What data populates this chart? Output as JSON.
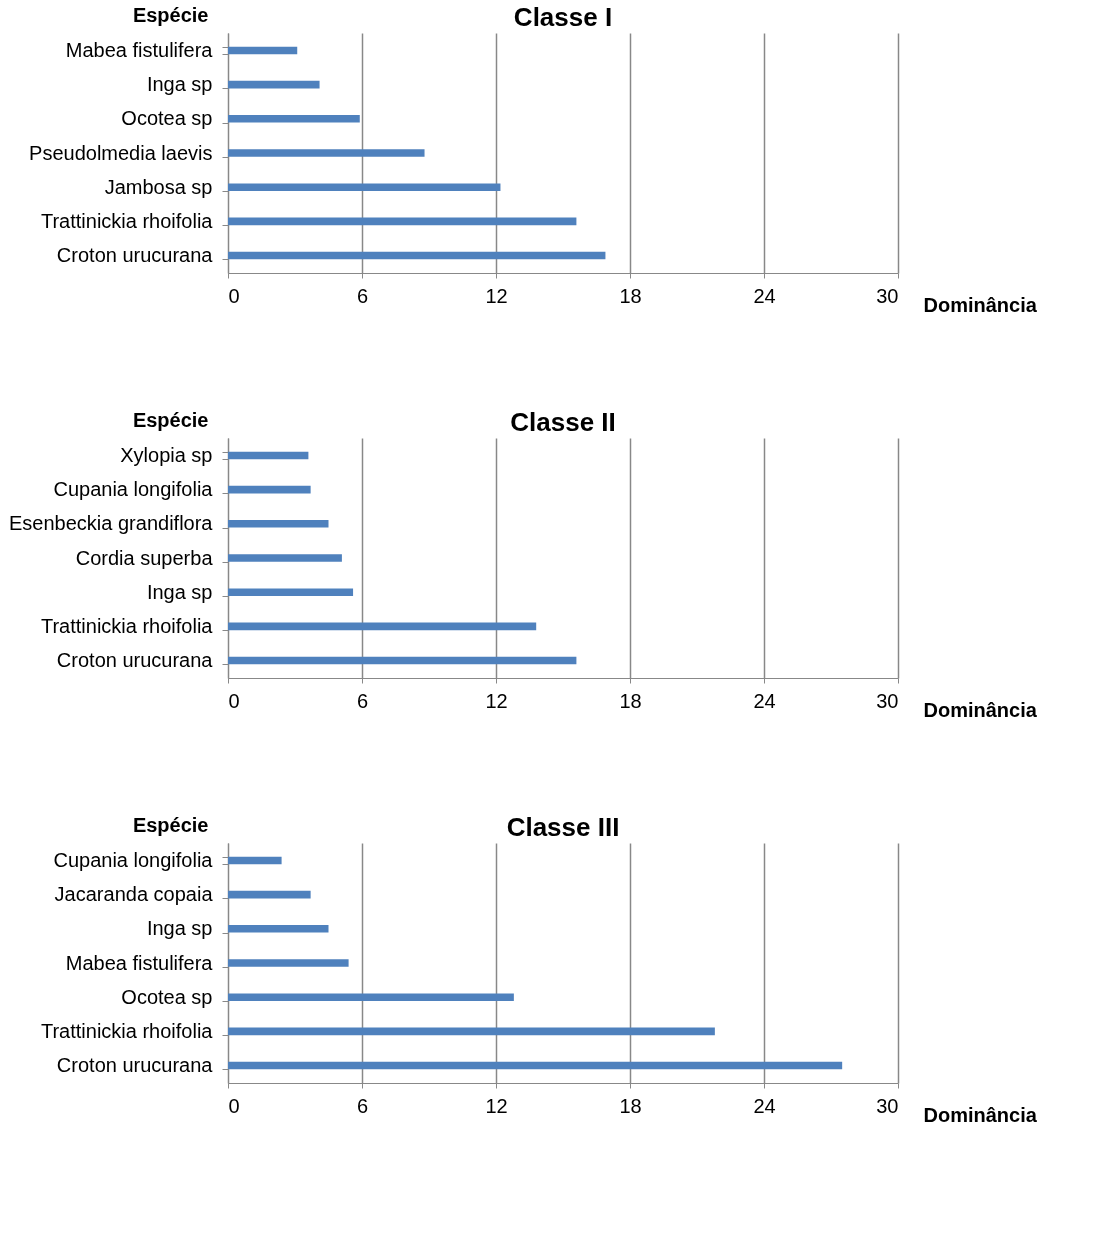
{
  "chart_data": [
    {
      "type": "bar",
      "orientation": "horizontal",
      "title": "Classe I",
      "ylabel": "Espécie",
      "xlabel": "Dominância",
      "categories": [
        "Mabea fistulifera",
        "Inga sp",
        "Ocotea sp",
        "Pseudolmedia laevis",
        "Jambosa sp",
        "Trattinickia rhoifolia",
        "Croton urucurana"
      ],
      "values": [
        3.1,
        4.1,
        5.9,
        8.8,
        12.2,
        15.6,
        16.9
      ],
      "color": "#4f81bd",
      "xlim": [
        0,
        30
      ],
      "xticks": [
        0,
        6,
        12,
        18,
        24,
        30
      ],
      "grid": "x"
    },
    {
      "type": "bar",
      "orientation": "horizontal",
      "title": "Classe II",
      "ylabel": "Espécie",
      "xlabel": "Dominância",
      "categories": [
        "Xylopia sp",
        "Cupania longifolia",
        "Esenbeckia grandiflora",
        "Cordia superba",
        "Inga sp",
        "Trattinickia rhoifolia",
        "Croton urucurana"
      ],
      "values": [
        3.6,
        3.7,
        4.5,
        5.1,
        5.6,
        13.8,
        15.6
      ],
      "color": "#4f81bd",
      "xlim": [
        0,
        30
      ],
      "xticks": [
        0,
        6,
        12,
        18,
        24,
        30
      ],
      "grid": "x"
    },
    {
      "type": "bar",
      "orientation": "horizontal",
      "title": "Classe III",
      "ylabel": "Espécie",
      "xlabel": "Dominância",
      "categories": [
        "Cupania longifolia",
        "Jacaranda copaia",
        "Inga sp",
        "Mabea fistulifera",
        "Ocotea sp",
        "Trattinickia rhoifolia",
        "Croton urucurana"
      ],
      "values": [
        2.4,
        3.7,
        4.5,
        5.4,
        12.8,
        21.8,
        27.5
      ],
      "color": "#4f81bd",
      "xlim": [
        0,
        30
      ],
      "xticks": [
        0,
        6,
        12,
        18,
        24,
        30
      ],
      "grid": "x"
    }
  ]
}
